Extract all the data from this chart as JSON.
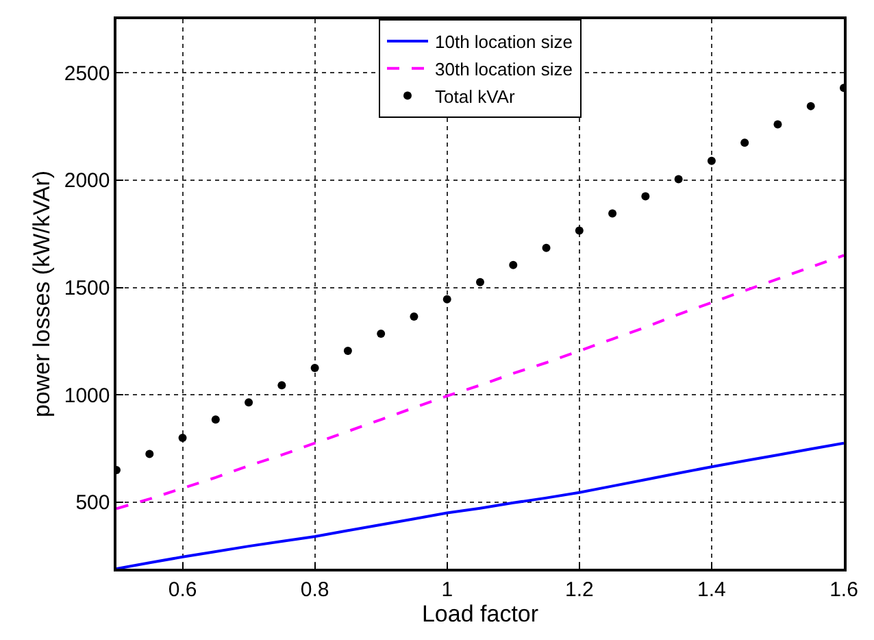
{
  "chart_data": {
    "type": "line",
    "xlabel": "Load factor",
    "ylabel": "power losses (kW/kVAr)",
    "x": [
      0.5,
      0.55,
      0.6,
      0.65,
      0.7,
      0.75,
      0.8,
      0.85,
      0.9,
      0.95,
      1.0,
      1.05,
      1.1,
      1.15,
      1.2,
      1.25,
      1.3,
      1.35,
      1.4,
      1.45,
      1.5,
      1.55,
      1.6
    ],
    "series": [
      {
        "name": "10th location size",
        "color": "#0000ff",
        "line_style": "solid",
        "marker": "none",
        "values": [
          190,
          218,
          245,
          270,
          295,
          318,
          340,
          368,
          395,
          422,
          450,
          472,
          497,
          520,
          545,
          575,
          605,
          635,
          665,
          693,
          720,
          748,
          775
        ]
      },
      {
        "name": "30th location size",
        "color": "#ff00ff",
        "line_style": "dashed",
        "marker": "none",
        "values": [
          470,
          515,
          565,
          615,
          670,
          720,
          775,
          830,
          885,
          940,
          995,
          1045,
          1100,
          1150,
          1205,
          1260,
          1315,
          1375,
          1430,
          1485,
          1540,
          1595,
          1650
        ]
      },
      {
        "name": "Total kVAr",
        "color": "#000000",
        "type": "scatter",
        "marker": "circle",
        "values": [
          650,
          725,
          800,
          885,
          965,
          1045,
          1125,
          1205,
          1285,
          1365,
          1445,
          1525,
          1605,
          1685,
          1765,
          1845,
          1925,
          2005,
          2090,
          2175,
          2260,
          2345,
          2430
        ]
      }
    ],
    "xlim": [
      0.5,
      1.6
    ],
    "xticks": [
      0.6,
      0.8,
      1,
      1.2,
      1.4,
      1.6
    ],
    "ylim": [
      190,
      2750
    ],
    "yticks": [
      500,
      1000,
      1500,
      2000,
      2500
    ],
    "grid": true,
    "legend": "top"
  }
}
